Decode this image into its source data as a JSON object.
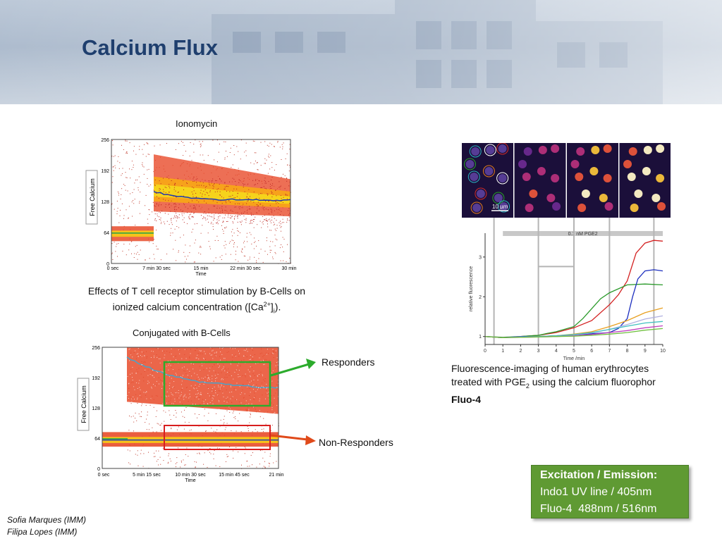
{
  "slide": {
    "title": "Calcium Flux"
  },
  "plot_top": {
    "title": "Ionomycin",
    "ylabel": "Free Calcium",
    "xlabel": "Time",
    "yticks": [
      "0",
      "64",
      "128",
      "192",
      "256"
    ],
    "xticks": [
      "0 sec",
      "7 min 30 sec",
      "15 min",
      "22 min 30 sec",
      "30 min"
    ]
  },
  "caption_top": {
    "line1": "Effects of T cell receptor stimulation by B-Cells on",
    "line2_pre": "ionized calcium concentration ([Ca",
    "sup": "2+",
    "line2_mid": "]",
    "sub": "i",
    "line2_post": ")."
  },
  "plot_bottom": {
    "title": "Conjugated with B-Cells",
    "ylabel": "Free Calcium",
    "xlabel": "Time",
    "yticks": [
      "0",
      "64",
      "128",
      "192",
      "256"
    ],
    "xticks": [
      "0 sec",
      "5 min 15 sec",
      "10 min 30 sec",
      "15 min 45 sec",
      "21 min"
    ]
  },
  "callouts": {
    "responders": "Responders",
    "non_responders": "Non-Responders"
  },
  "micrograph": {
    "scale_label": "10 µm"
  },
  "chart_data": {
    "type": "line",
    "annotation": "0.1 nM PGE2",
    "xlabel": "Time /min",
    "ylabel": "relative fluorescence",
    "xlim": [
      0,
      10
    ],
    "ylim": [
      0.8,
      3.6
    ],
    "xticks": [
      0,
      1,
      2,
      3,
      4,
      5,
      6,
      7,
      8,
      9,
      10
    ],
    "yticks": [
      1,
      2,
      3
    ],
    "stimulus_window": [
      1.0,
      10.0
    ],
    "series": [
      {
        "color": "#d32020",
        "x": [
          0,
          1,
          2,
          3,
          4,
          5,
          6,
          7,
          7.5,
          8,
          8.5,
          9,
          9.5,
          10
        ],
        "y": [
          1.0,
          0.97,
          1.0,
          1.03,
          1.1,
          1.22,
          1.4,
          1.8,
          2.05,
          2.4,
          3.1,
          3.35,
          3.42,
          3.4
        ]
      },
      {
        "color": "#2a9a2a",
        "x": [
          0,
          1,
          2,
          3,
          3.5,
          4,
          5,
          5.5,
          6,
          6.5,
          7,
          8,
          9,
          10
        ],
        "y": [
          1.0,
          0.98,
          1.0,
          1.03,
          1.08,
          1.12,
          1.25,
          1.45,
          1.7,
          1.95,
          2.1,
          2.3,
          2.32,
          2.3
        ]
      },
      {
        "color": "#1d2fbf",
        "x": [
          0,
          1,
          2,
          3,
          4,
          5,
          6,
          7,
          7.5,
          8,
          8.3,
          8.6,
          9,
          9.5,
          10
        ],
        "y": [
          1.0,
          0.97,
          1.0,
          1.0,
          1.02,
          1.04,
          1.07,
          1.1,
          1.2,
          1.45,
          2.0,
          2.45,
          2.65,
          2.68,
          2.65
        ]
      },
      {
        "color": "#e8a020",
        "x": [
          0,
          1,
          2,
          3,
          4,
          5,
          6,
          7,
          8,
          9,
          10
        ],
        "y": [
          1.0,
          0.97,
          0.99,
          1.0,
          1.02,
          1.06,
          1.12,
          1.25,
          1.4,
          1.6,
          1.72
        ]
      },
      {
        "color": "#b0b0e0",
        "x": [
          0,
          1,
          2,
          3,
          4,
          5,
          6,
          7,
          8,
          9,
          10
        ],
        "y": [
          1.0,
          0.97,
          0.99,
          1.0,
          1.01,
          1.04,
          1.09,
          1.18,
          1.3,
          1.44,
          1.52
        ]
      },
      {
        "color": "#40c0c0",
        "x": [
          0,
          1,
          2,
          3,
          4,
          5,
          6,
          7,
          8,
          9,
          10
        ],
        "y": [
          1.0,
          0.97,
          0.99,
          1.0,
          1.02,
          1.05,
          1.1,
          1.18,
          1.26,
          1.34,
          1.38
        ]
      },
      {
        "color": "#c040c0",
        "x": [
          0,
          1,
          2,
          3,
          4,
          5,
          6,
          7,
          8,
          9,
          10
        ],
        "y": [
          1.0,
          0.97,
          0.98,
          0.99,
          1.0,
          1.02,
          1.05,
          1.1,
          1.15,
          1.22,
          1.27
        ]
      },
      {
        "color": "#70c040",
        "x": [
          0,
          1,
          2,
          3,
          4,
          5,
          6,
          7,
          8,
          9,
          10
        ],
        "y": [
          1.0,
          0.97,
          0.98,
          0.99,
          1.0,
          1.01,
          1.03,
          1.06,
          1.1,
          1.16,
          1.2
        ]
      }
    ]
  },
  "caption_right": {
    "line1": "Fluorescence-imaging of human erythrocytes",
    "line2_pre": "treated with PGE",
    "sub": "2",
    "line2_post": " using the calcium fluorophor",
    "line3": "Fluo-4"
  },
  "excitation_box": {
    "heading": "Excitation / Emission:",
    "line1": "Indo1 UV line / 405nm",
    "line2": "Fluo-4  488nm / 516nm"
  },
  "credits": {
    "line1": "Sofia Marques (IMM)",
    "line2": "Filipa Lopes (IMM)"
  }
}
